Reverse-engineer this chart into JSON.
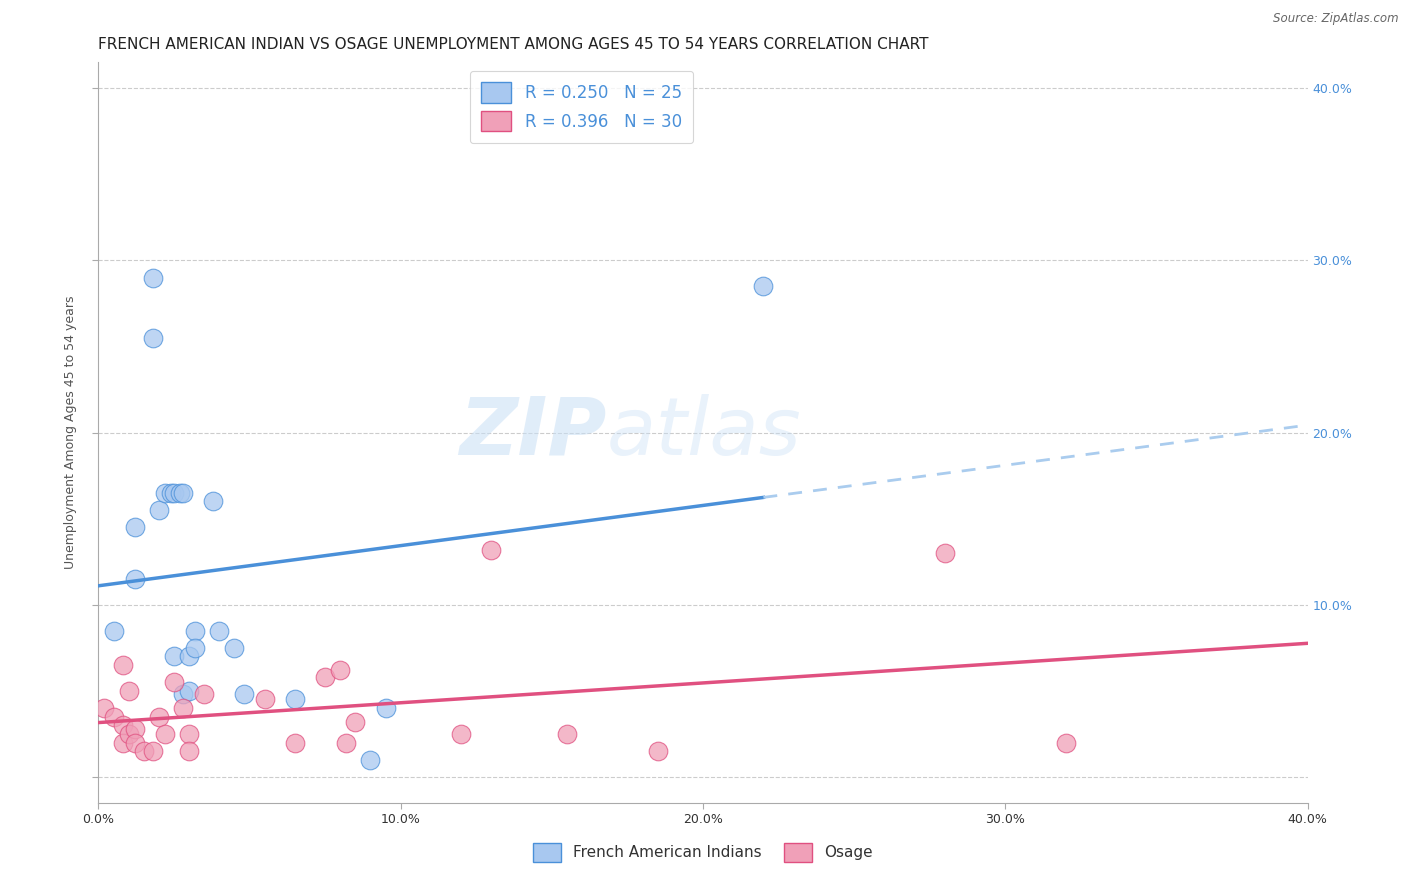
{
  "title": "FRENCH AMERICAN INDIAN VS OSAGE UNEMPLOYMENT AMONG AGES 45 TO 54 YEARS CORRELATION CHART",
  "source": "Source: ZipAtlas.com",
  "ylabel": "Unemployment Among Ages 45 to 54 years",
  "xlim": [
    0.0,
    0.4
  ],
  "ylim": [
    -0.015,
    0.415
  ],
  "legend_blue_r": "0.250",
  "legend_blue_n": "25",
  "legend_pink_r": "0.396",
  "legend_pink_n": "30",
  "legend_label_blue": "French American Indians",
  "legend_label_pink": "Osage",
  "watermark_zip": "ZIP",
  "watermark_atlas": "atlas",
  "blue_scatter_x": [
    0.005,
    0.012,
    0.012,
    0.018,
    0.018,
    0.02,
    0.022,
    0.024,
    0.025,
    0.025,
    0.027,
    0.028,
    0.028,
    0.03,
    0.03,
    0.032,
    0.032,
    0.038,
    0.04,
    0.045,
    0.048,
    0.065,
    0.09,
    0.095,
    0.22
  ],
  "blue_scatter_y": [
    0.085,
    0.115,
    0.145,
    0.255,
    0.29,
    0.155,
    0.165,
    0.165,
    0.165,
    0.07,
    0.165,
    0.165,
    0.048,
    0.05,
    0.07,
    0.085,
    0.075,
    0.16,
    0.085,
    0.075,
    0.048,
    0.045,
    0.01,
    0.04,
    0.285
  ],
  "pink_scatter_x": [
    0.002,
    0.005,
    0.008,
    0.008,
    0.008,
    0.01,
    0.01,
    0.012,
    0.012,
    0.015,
    0.018,
    0.02,
    0.022,
    0.025,
    0.028,
    0.03,
    0.03,
    0.035,
    0.055,
    0.065,
    0.075,
    0.08,
    0.082,
    0.085,
    0.12,
    0.13,
    0.155,
    0.185,
    0.28,
    0.32
  ],
  "pink_scatter_y": [
    0.04,
    0.035,
    0.065,
    0.03,
    0.02,
    0.025,
    0.05,
    0.028,
    0.02,
    0.015,
    0.015,
    0.035,
    0.025,
    0.055,
    0.04,
    0.025,
    0.015,
    0.048,
    0.045,
    0.02,
    0.058,
    0.062,
    0.02,
    0.032,
    0.025,
    0.132,
    0.025,
    0.015,
    0.13,
    0.02
  ],
  "blue_line_color": "#4a90d9",
  "blue_dash_color": "#aaccee",
  "pink_line_color": "#e05080",
  "scatter_blue_color": "#a8c8f0",
  "scatter_pink_color": "#f0a0b8",
  "grid_color": "#cccccc",
  "background_color": "#ffffff",
  "title_fontsize": 11,
  "axis_fontsize": 9,
  "tick_fontsize": 9,
  "right_tick_color": "#4a90d9"
}
